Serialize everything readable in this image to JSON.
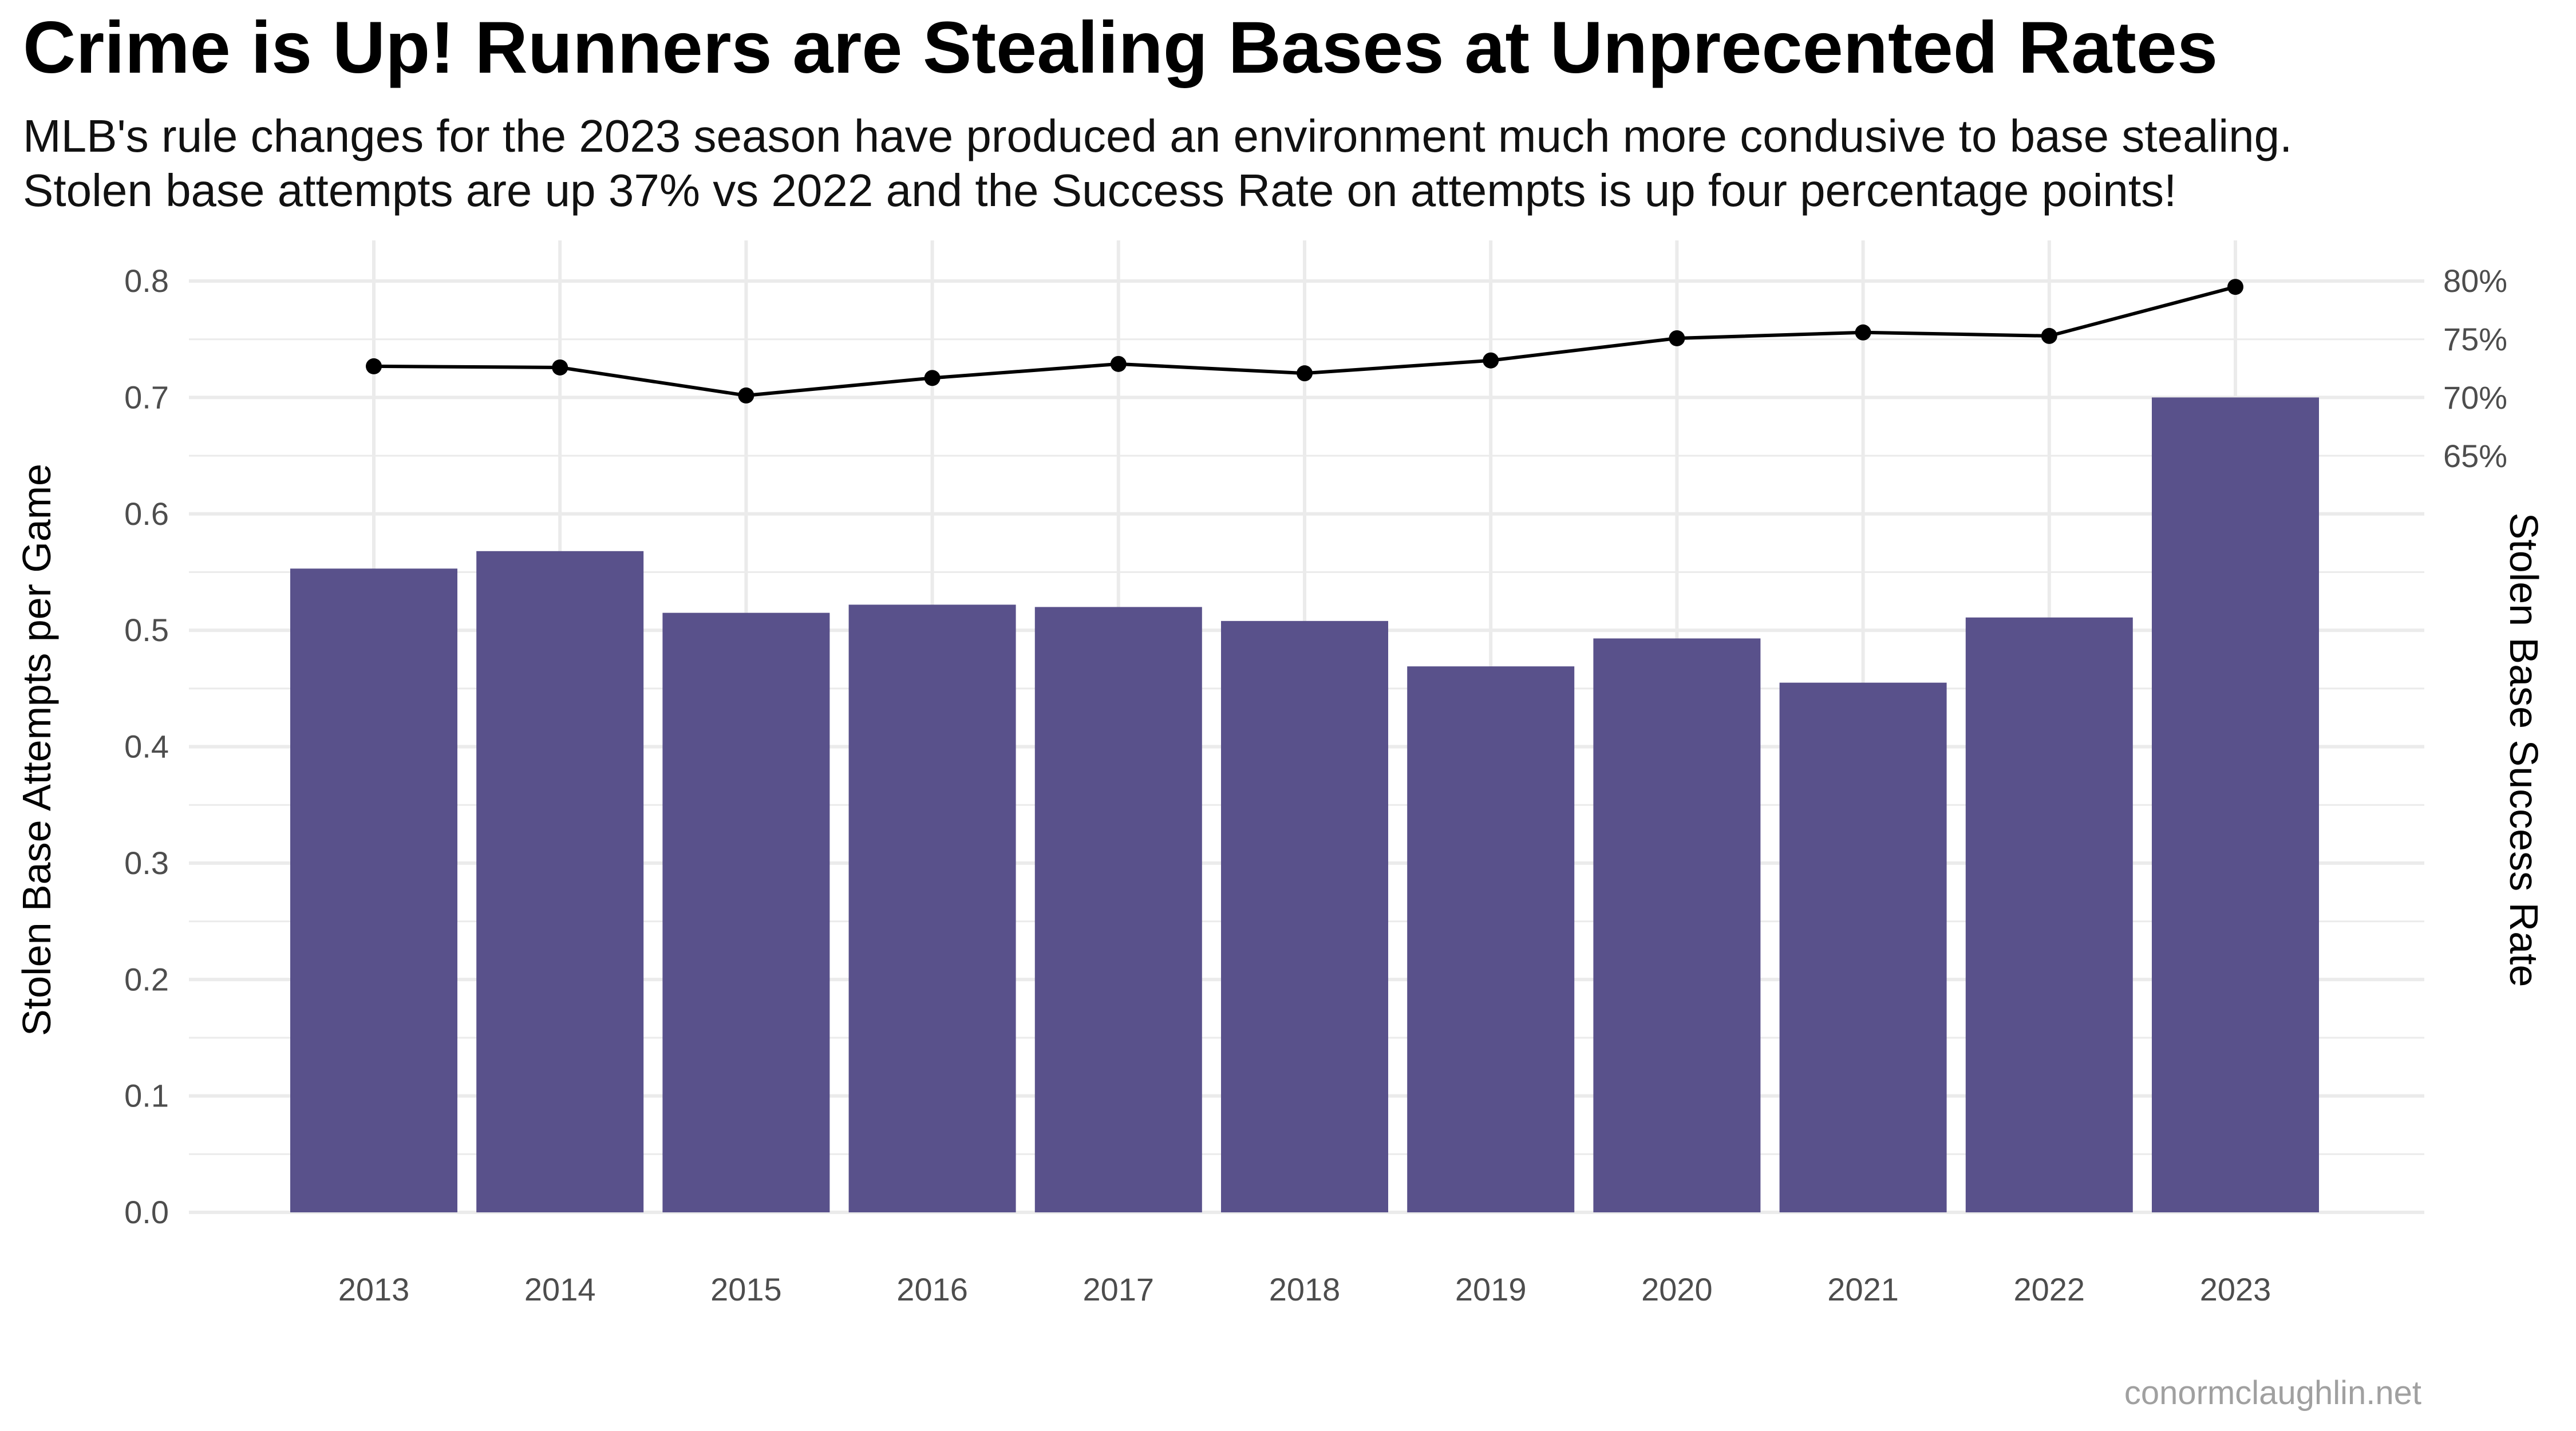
{
  "title": "Crime is Up! Runners are Stealing Bases at Unprecented Rates",
  "subtitle_lines": [
    "MLB's rule changes for the 2023 season have produced an environment much more condusive to base stealing.",
    "Stolen base attempts are up 37% vs 2022 and the Success Rate on attempts is up four percentage points!"
  ],
  "caption": "conormclaughlin.net",
  "chart_data": {
    "type": "bar",
    "categories": [
      "2013",
      "2014",
      "2015",
      "2016",
      "2017",
      "2018",
      "2019",
      "2020",
      "2021",
      "2022",
      "2023"
    ],
    "series": [
      {
        "name": "Stolen Base Attempts per Game",
        "type": "bar",
        "axis": "left",
        "values": [
          0.553,
          0.568,
          0.515,
          0.522,
          0.52,
          0.508,
          0.469,
          0.493,
          0.455,
          0.511,
          0.7
        ]
      },
      {
        "name": "Stolen Base Success Rate",
        "type": "line",
        "axis": "right",
        "values": [
          0.727,
          0.726,
          0.702,
          0.717,
          0.729,
          0.721,
          0.732,
          0.751,
          0.756,
          0.753,
          0.795
        ]
      }
    ],
    "ylabel": "Stolen Base Attempts per Game",
    "y2label": "Stolen Base Success Rate",
    "ylim": [
      0,
      0.8
    ],
    "yticks": [
      "0.0",
      "0.1",
      "0.2",
      "0.3",
      "0.4",
      "0.5",
      "0.6",
      "0.7",
      "0.8"
    ],
    "y2ticks": [
      {
        "value": 0.65,
        "label": "65%"
      },
      {
        "value": 0.7,
        "label": "70%"
      },
      {
        "value": 0.75,
        "label": "75%"
      },
      {
        "value": 0.8,
        "label": "80%"
      }
    ],
    "grid": true,
    "legend": "none",
    "colors": {
      "bar": "#59518b",
      "line": "#000000",
      "grid": "#ebebeb",
      "tick_text": "#4d4d4d",
      "axis_title": "#000000"
    }
  }
}
